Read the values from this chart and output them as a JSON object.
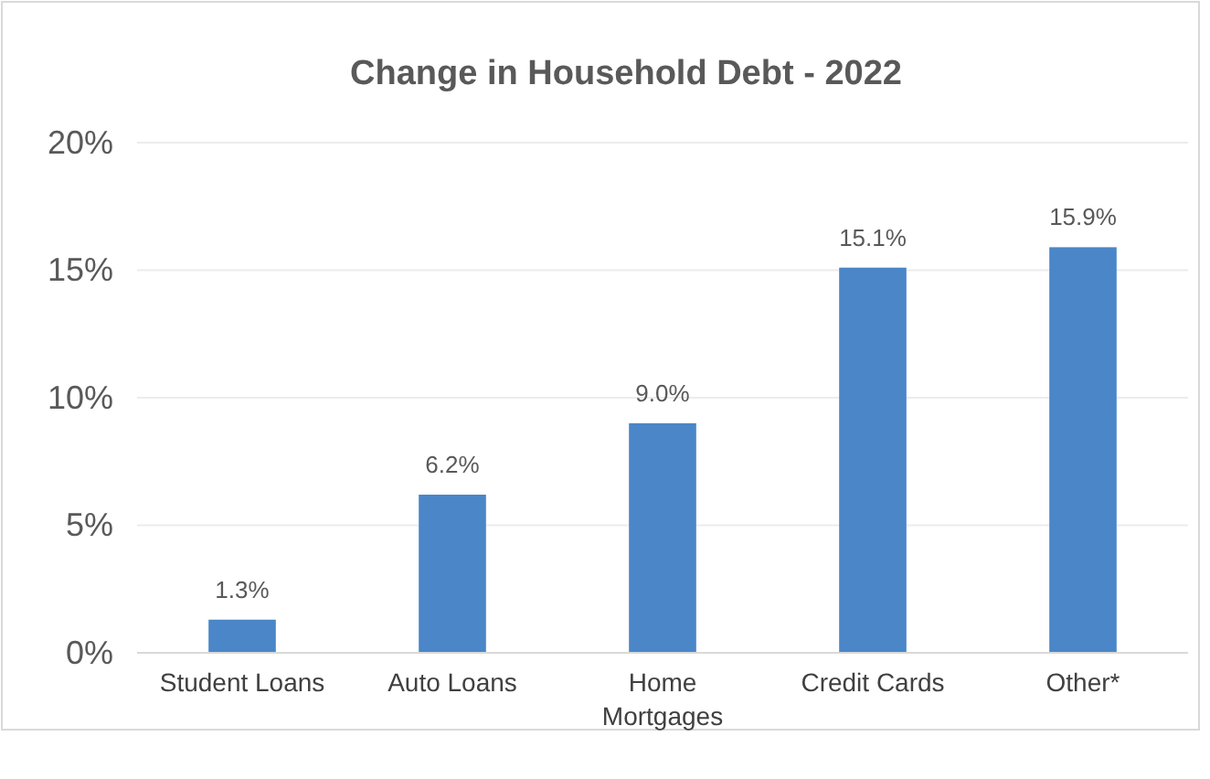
{
  "chart_data": {
    "type": "bar",
    "title": "Change in Household Debt - 2022",
    "categories": [
      "Student Loans",
      "Auto Loans",
      "Home Mortgages",
      "Credit Cards",
      "Other*"
    ],
    "values": [
      1.3,
      6.2,
      9.0,
      15.1,
      15.9
    ],
    "value_labels": [
      "1.3%",
      "6.2%",
      "9.0%",
      "15.1%",
      "15.9%"
    ],
    "color": "#4a86c8",
    "ylim": [
      0,
      20
    ],
    "yticks": [
      {
        "value": 0,
        "label": "0%"
      },
      {
        "value": 5,
        "label": "5%"
      },
      {
        "value": 10,
        "label": "10%"
      },
      {
        "value": 15,
        "label": "15%"
      },
      {
        "value": 20,
        "label": "20%"
      }
    ],
    "grid": "y"
  }
}
